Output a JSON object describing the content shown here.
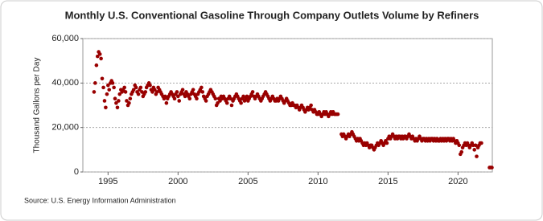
{
  "chart_data": {
    "type": "scatter",
    "title": "Monthly U.S. Conventional Gasoline Through Company Outlets Volume by Refiners",
    "y_label": "Thousand Gallons per Day",
    "source": "Source: U.S. Energy Information Administration",
    "color": "#990000",
    "grid": true,
    "xlim": [
      1993.2,
      2022.45
    ],
    "xticks": [
      1995,
      2000,
      2005,
      2010,
      2015,
      2020
    ],
    "ylim": [
      0,
      60000
    ],
    "yticks": [
      0,
      {
        "value": 20000,
        "label": "20,000"
      },
      {
        "value": 40000,
        "label": "40,000"
      },
      {
        "value": 60000,
        "label": "60,000"
      }
    ],
    "x": [
      1994,
      1994.08,
      1994.17,
      1994.25,
      1994.33,
      1994.42,
      1994.5,
      1994.58,
      1994.67,
      1994.75,
      1994.83,
      1994.92,
      1995,
      1995.08,
      1995.17,
      1995.25,
      1995.33,
      1995.42,
      1995.5,
      1995.58,
      1995.67,
      1995.75,
      1995.83,
      1995.92,
      1996,
      1996.08,
      1996.17,
      1996.25,
      1996.33,
      1996.42,
      1996.5,
      1996.58,
      1996.67,
      1996.75,
      1996.83,
      1996.92,
      1997,
      1997.08,
      1997.17,
      1997.25,
      1997.33,
      1997.42,
      1997.5,
      1997.58,
      1997.67,
      1997.75,
      1997.83,
      1997.92,
      1998,
      1998.08,
      1998.17,
      1998.25,
      1998.33,
      1998.42,
      1998.5,
      1998.58,
      1998.67,
      1998.75,
      1998.83,
      1998.92,
      1999,
      1999.08,
      1999.17,
      1999.25,
      1999.33,
      1999.42,
      1999.5,
      1999.58,
      1999.67,
      1999.75,
      1999.83,
      1999.92,
      2000,
      2000.08,
      2000.17,
      2000.25,
      2000.33,
      2000.42,
      2000.5,
      2000.58,
      2000.67,
      2000.75,
      2000.83,
      2000.92,
      2001,
      2001.08,
      2001.17,
      2001.25,
      2001.33,
      2001.42,
      2001.5,
      2001.58,
      2001.67,
      2001.75,
      2001.83,
      2001.92,
      2002,
      2002.08,
      2002.17,
      2002.25,
      2002.33,
      2002.42,
      2002.5,
      2002.58,
      2002.67,
      2002.75,
      2002.83,
      2002.92,
      2003,
      2003.08,
      2003.17,
      2003.25,
      2003.33,
      2003.42,
      2003.5,
      2003.58,
      2003.67,
      2003.75,
      2003.83,
      2003.92,
      2004,
      2004.08,
      2004.17,
      2004.25,
      2004.33,
      2004.42,
      2004.5,
      2004.58,
      2004.67,
      2004.75,
      2004.83,
      2004.92,
      2005,
      2005.08,
      2005.17,
      2005.25,
      2005.33,
      2005.42,
      2005.5,
      2005.58,
      2005.67,
      2005.75,
      2005.83,
      2005.92,
      2006,
      2006.08,
      2006.17,
      2006.25,
      2006.33,
      2006.42,
      2006.5,
      2006.58,
      2006.67,
      2006.75,
      2006.83,
      2006.92,
      2007,
      2007.08,
      2007.17,
      2007.25,
      2007.33,
      2007.42,
      2007.5,
      2007.58,
      2007.67,
      2007.75,
      2007.83,
      2007.92,
      2008,
      2008.08,
      2008.17,
      2008.25,
      2008.33,
      2008.42,
      2008.5,
      2008.58,
      2008.67,
      2008.75,
      2008.83,
      2008.92,
      2009,
      2009.08,
      2009.17,
      2009.25,
      2009.33,
      2009.42,
      2009.5,
      2009.58,
      2009.67,
      2009.75,
      2009.83,
      2009.92,
      2010,
      2010.08,
      2010.17,
      2010.25,
      2010.33,
      2010.42,
      2010.5,
      2010.58,
      2010.67,
      2010.75,
      2010.83,
      2010.92,
      2011,
      2011.08,
      2011.17,
      2011.25,
      2011.33,
      2011.42,
      2011.67,
      2011.75,
      2011.83,
      2011.92,
      2012,
      2012.08,
      2012.17,
      2012.25,
      2012.33,
      2012.42,
      2012.5,
      2012.58,
      2012.67,
      2012.75,
      2012.83,
      2012.92,
      2013,
      2013.08,
      2013.17,
      2013.25,
      2013.33,
      2013.42,
      2013.5,
      2013.58,
      2013.67,
      2013.75,
      2013.83,
      2013.92,
      2014,
      2014.08,
      2014.17,
      2014.25,
      2014.33,
      2014.42,
      2014.5,
      2014.58,
      2014.67,
      2014.75,
      2014.83,
      2014.92,
      2015,
      2015.08,
      2015.17,
      2015.25,
      2015.33,
      2015.42,
      2015.5,
      2015.58,
      2015.67,
      2015.75,
      2015.83,
      2015.92,
      2016,
      2016.08,
      2016.17,
      2016.25,
      2016.33,
      2016.42,
      2016.5,
      2016.58,
      2016.67,
      2016.75,
      2016.83,
      2016.92,
      2017,
      2017.08,
      2017.17,
      2017.25,
      2017.33,
      2017.42,
      2017.5,
      2017.58,
      2017.67,
      2017.75,
      2017.83,
      2017.92,
      2018,
      2018.08,
      2018.17,
      2018.25,
      2018.33,
      2018.42,
      2018.5,
      2018.58,
      2018.67,
      2018.75,
      2018.83,
      2018.92,
      2019,
      2019.08,
      2019.17,
      2019.25,
      2019.33,
      2019.42,
      2019.5,
      2019.58,
      2019.67,
      2019.75,
      2019.83,
      2019.92,
      2020,
      2020.08,
      2020.17,
      2020.25,
      2020.33,
      2020.42,
      2020.5,
      2020.58,
      2020.67,
      2020.75,
      2020.83,
      2020.92,
      2021,
      2021.08,
      2021.17,
      2021.25,
      2021.33,
      2021.42,
      2021.5,
      2021.58,
      2021.67,
      2022.25,
      2022.33,
      2022.42
    ],
    "values": [
      36000,
      40000,
      48000,
      52000,
      54000,
      53000,
      51000,
      42000,
      38000,
      32000,
      29000,
      35000,
      39000,
      37000,
      40000,
      41000,
      40000,
      38000,
      33000,
      31000,
      29000,
      32000,
      35000,
      37000,
      36000,
      37000,
      38000,
      36000,
      32000,
      30000,
      31000,
      33000,
      35000,
      36000,
      37000,
      39000,
      38000,
      36000,
      35000,
      37000,
      38000,
      36000,
      34000,
      35000,
      36000,
      38000,
      39000,
      40000,
      39000,
      37000,
      36000,
      38000,
      37000,
      35000,
      36000,
      38000,
      37000,
      36000,
      35000,
      34000,
      33000,
      34000,
      31000,
      33000,
      34000,
      35000,
      36000,
      35000,
      34000,
      33000,
      35000,
      36000,
      34000,
      32000,
      35000,
      36000,
      37000,
      35000,
      34000,
      36000,
      35000,
      34000,
      33000,
      35000,
      36000,
      37000,
      35000,
      34000,
      33000,
      35000,
      36000,
      37000,
      38000,
      36000,
      34000,
      33000,
      32000,
      34000,
      35000,
      36000,
      37000,
      36000,
      35000,
      34000,
      33000,
      30000,
      31000,
      33000,
      32000,
      34000,
      33000,
      34000,
      33000,
      32000,
      31000,
      33000,
      34000,
      33000,
      30000,
      32000,
      33000,
      34000,
      35000,
      34000,
      33000,
      32000,
      31000,
      33000,
      34000,
      32000,
      33000,
      34000,
      32000,
      33000,
      34000,
      35000,
      36000,
      34000,
      33000,
      34000,
      35000,
      34000,
      33000,
      32000,
      33000,
      34000,
      35000,
      36000,
      35000,
      34000,
      33000,
      32000,
      33000,
      34000,
      33000,
      32000,
      32000,
      33000,
      32000,
      33000,
      34000,
      33000,
      32000,
      31000,
      32000,
      33000,
      32000,
      31000,
      30000,
      30000,
      31000,
      30000,
      30000,
      29000,
      30000,
      29000,
      28000,
      29000,
      30000,
      29000,
      28000,
      27000,
      28000,
      29000,
      28000,
      29000,
      30000,
      28000,
      27000,
      28000,
      27000,
      26000,
      26000,
      27000,
      26000,
      25000,
      26000,
      27000,
      26000,
      27000,
      26000,
      25000,
      26000,
      27000,
      26000,
      27000,
      26000,
      26000,
      26000,
      26000,
      17000,
      16000,
      17000,
      16000,
      15000,
      16000,
      17000,
      16000,
      17000,
      18000,
      17000,
      16000,
      15000,
      14000,
      15000,
      14000,
      15000,
      14000,
      13000,
      12000,
      13000,
      12000,
      13000,
      12000,
      11000,
      12000,
      12000,
      11000,
      10000,
      11000,
      12000,
      13000,
      12000,
      13000,
      14000,
      13000,
      12000,
      13000,
      14000,
      13000,
      15000,
      16000,
      15000,
      16000,
      17000,
      16000,
      15000,
      16000,
      15000,
      16000,
      16000,
      15000,
      16000,
      15000,
      16000,
      16000,
      15000,
      16000,
      17000,
      16000,
      15000,
      16000,
      15000,
      14000,
      15000,
      14000,
      15000,
      16000,
      15000,
      14000,
      15000,
      15000,
      14000,
      15000,
      14000,
      15000,
      14000,
      15000,
      15000,
      14000,
      15000,
      14000,
      15000,
      14000,
      14000,
      15000,
      14000,
      15000,
      14000,
      15000,
      14000,
      15000,
      15000,
      14000,
      15000,
      14000,
      15000,
      14000,
      13000,
      14000,
      13000,
      12000,
      8000,
      9000,
      11000,
      12000,
      13000,
      12000,
      13000,
      12000,
      11000,
      12000,
      13000,
      12000,
      10000,
      12000,
      7000,
      11000,
      12000,
      13000,
      13000,
      2000,
      2000,
      2000
    ]
  }
}
